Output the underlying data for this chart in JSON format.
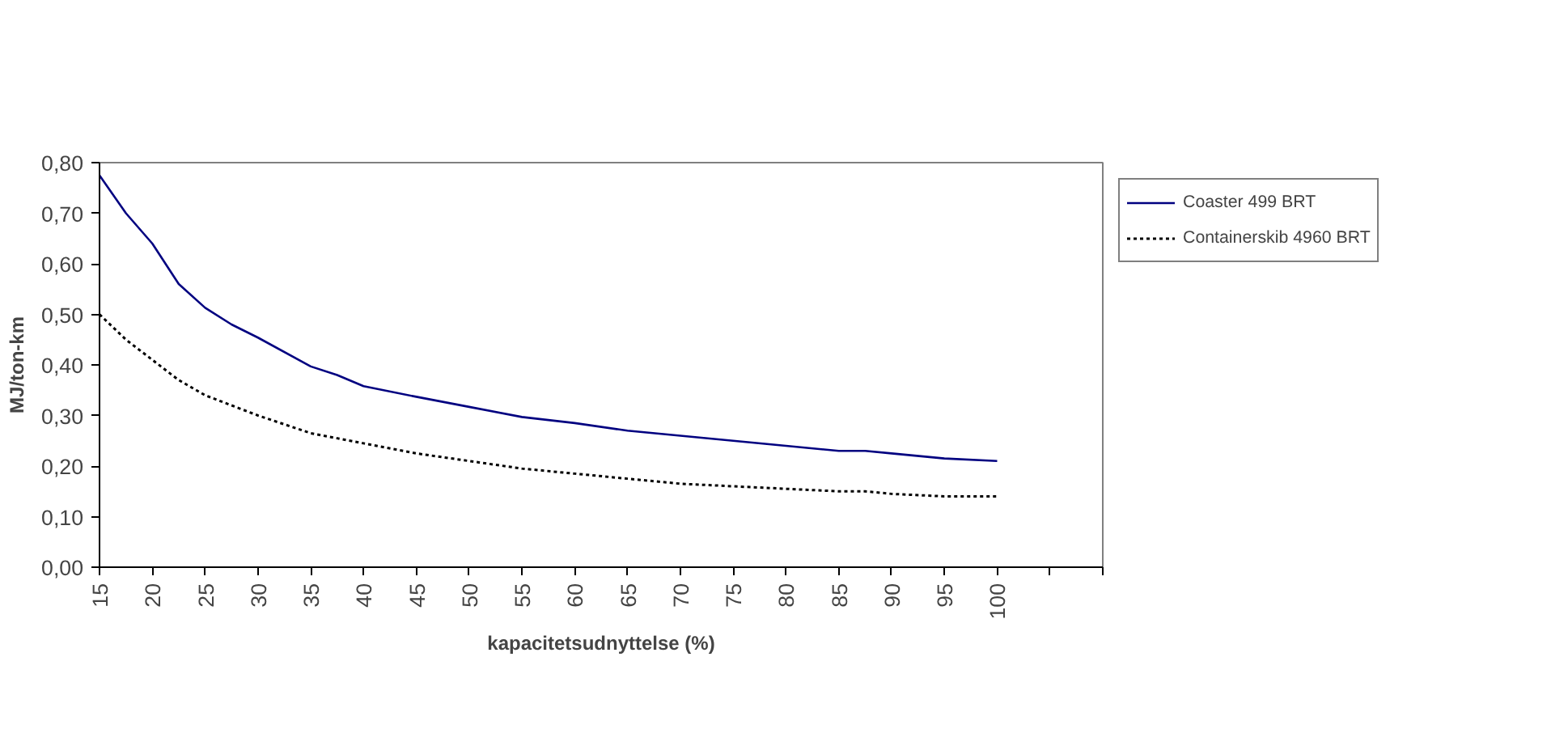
{
  "chart_data": {
    "type": "line",
    "xlabel": "kapacitetsudnyttelse (%)",
    "ylabel": "MJ/ton-km",
    "xlim": [
      15,
      110
    ],
    "xticks": [
      15,
      20,
      25,
      30,
      35,
      40,
      45,
      50,
      55,
      60,
      65,
      70,
      75,
      80,
      85,
      90,
      95,
      100,
      {
        "value": 105,
        "label": null
      },
      {
        "value": 110,
        "label": null
      }
    ],
    "ylim": [
      0,
      0.8
    ],
    "yticks": [
      {
        "value": 0,
        "label": "0,00"
      },
      {
        "value": 0.1,
        "label": "0,10"
      },
      {
        "value": 0.2,
        "label": "0,20"
      },
      {
        "value": 0.3,
        "label": "0,30"
      },
      {
        "value": 0.4,
        "label": "0,40"
      },
      {
        "value": 0.5,
        "label": "0,50"
      },
      {
        "value": 0.6,
        "label": "0,60"
      },
      {
        "value": 0.7,
        "label": "0,70"
      },
      {
        "value": 0.8,
        "label": "0,80"
      }
    ],
    "x": [
      15,
      17.5,
      20,
      22.5,
      25,
      27.5,
      30,
      35,
      37.5,
      40,
      45,
      50,
      55,
      60,
      65,
      70,
      75,
      80,
      85,
      87.5,
      90,
      95,
      100
    ],
    "series": [
      {
        "name": "Coaster 499 BRT",
        "color": "#000080",
        "line_style": "solid",
        "values": [
          0.775,
          0.7,
          0.64,
          0.56,
          0.513,
          0.48,
          0.454,
          0.397,
          0.38,
          0.358,
          0.337,
          0.317,
          0.297,
          0.285,
          0.27,
          0.26,
          0.25,
          0.24,
          0.23,
          0.23,
          0.225,
          0.215,
          0.21
        ]
      },
      {
        "name": "Containerskib 4960 BRT",
        "color": "#000000",
        "line_style": "dotted",
        "values": [
          0.5,
          0.45,
          0.41,
          0.37,
          0.34,
          0.32,
          0.3,
          0.265,
          0.255,
          0.245,
          0.225,
          0.21,
          0.195,
          0.185,
          0.175,
          0.165,
          0.16,
          0.155,
          0.15,
          0.15,
          0.145,
          0.14,
          0.14
        ]
      }
    ],
    "grid": false,
    "legend": "right",
    "marker": "none"
  }
}
